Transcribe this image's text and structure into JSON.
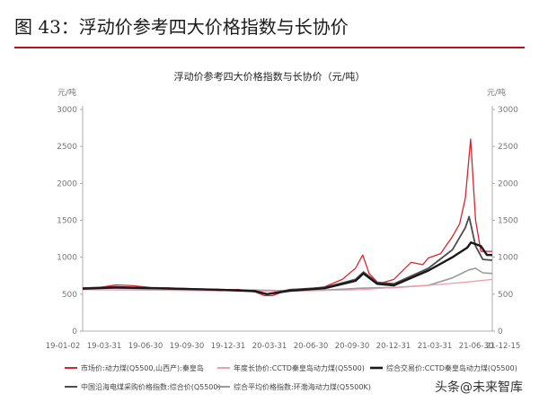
{
  "figure": {
    "title": "图 43：浮动价参考四大价格指数与长协价"
  },
  "watermark": "头条@未来智库",
  "chart_data": {
    "type": "line",
    "title": "浮动价参考四大价格指数与长协价（元/吨）",
    "left_axis": {
      "unit": "元/吨",
      "ticks": [
        0,
        500,
        1000,
        1500,
        2000,
        2500,
        3000
      ],
      "ylim": [
        0,
        3000
      ]
    },
    "right_axis": {
      "unit": "元/吨",
      "ticks": [
        0,
        500,
        1000,
        1500,
        2000,
        2500,
        3000
      ],
      "ylim": [
        0,
        3000
      ]
    },
    "x_ticks": [
      "19-01-02",
      "19-03-31",
      "19-06-30",
      "19-09-30",
      "19-12-31",
      "20-03-31",
      "20-06-30",
      "20-09-30",
      "20-12-31",
      "21-03-31",
      "21-06-30",
      "21-12-15"
    ],
    "legend_position": "bottom",
    "series": [
      {
        "name": "市场价:动力煤(Q5500,山西产):秦皇岛",
        "color": "#d7262f",
        "points": [
          [
            "2019-01-02",
            585
          ],
          [
            "2019-02-15",
            590
          ],
          [
            "2019-03-31",
            625
          ],
          [
            "2019-05-15",
            615
          ],
          [
            "2019-06-30",
            590
          ],
          [
            "2019-08-15",
            585
          ],
          [
            "2019-09-30",
            575
          ],
          [
            "2019-11-15",
            560
          ],
          [
            "2019-12-31",
            550
          ],
          [
            "2020-02-15",
            565
          ],
          [
            "2020-03-31",
            530
          ],
          [
            "2020-04-25",
            480
          ],
          [
            "2020-05-15",
            480
          ],
          [
            "2020-06-30",
            565
          ],
          [
            "2020-08-15",
            570
          ],
          [
            "2020-09-30",
            600
          ],
          [
            "2020-11-15",
            700
          ],
          [
            "2020-12-20",
            850
          ],
          [
            "2021-01-08",
            1030
          ],
          [
            "2021-01-25",
            780
          ],
          [
            "2021-02-20",
            640
          ],
          [
            "2021-03-31",
            700
          ],
          [
            "2021-05-15",
            930
          ],
          [
            "2021-06-15",
            900
          ],
          [
            "2021-06-30",
            990
          ],
          [
            "2021-08-01",
            1050
          ],
          [
            "2021-09-01",
            1280
          ],
          [
            "2021-09-20",
            1450
          ],
          [
            "2021-10-05",
            1800
          ],
          [
            "2021-10-19",
            2600
          ],
          [
            "2021-11-01",
            1500
          ],
          [
            "2021-11-15",
            1080
          ],
          [
            "2021-12-15",
            1080
          ]
        ]
      },
      {
        "name": "年度长协价:CCTD秦皇岛动力煤(Q5500)",
        "color": "#f19bb0",
        "points": [
          [
            "2019-01-02",
            560
          ],
          [
            "2019-06-30",
            555
          ],
          [
            "2019-12-31",
            545
          ],
          [
            "2020-06-30",
            540
          ],
          [
            "2020-12-31",
            560
          ],
          [
            "2021-03-31",
            590
          ],
          [
            "2021-06-30",
            620
          ],
          [
            "2021-09-30",
            660
          ],
          [
            "2021-12-15",
            700
          ]
        ]
      },
      {
        "name": "综合交易价:CCTD秦皇岛动力煤(Q5500)",
        "color": "#1a1a1a",
        "points": [
          [
            "2019-01-02",
            575
          ],
          [
            "2019-03-31",
            590
          ],
          [
            "2019-06-30",
            580
          ],
          [
            "2019-09-30",
            570
          ],
          [
            "2019-12-31",
            560
          ],
          [
            "2020-03-31",
            540
          ],
          [
            "2020-05-01",
            500
          ],
          [
            "2020-06-30",
            545
          ],
          [
            "2020-09-30",
            580
          ],
          [
            "2020-12-20",
            680
          ],
          [
            "2021-01-10",
            780
          ],
          [
            "2021-02-15",
            640
          ],
          [
            "2021-03-31",
            620
          ],
          [
            "2021-06-30",
            820
          ],
          [
            "2021-09-01",
            1000
          ],
          [
            "2021-10-10",
            1130
          ],
          [
            "2021-10-20",
            1200
          ],
          [
            "2021-11-15",
            1150
          ],
          [
            "2021-12-01",
            1030
          ],
          [
            "2021-12-15",
            1030
          ]
        ]
      },
      {
        "name": "中国沿海电煤采购价格指数:综合价(Q5500)",
        "color": "#4d4d4d",
        "points": [
          [
            "2019-01-02",
            580
          ],
          [
            "2019-03-31",
            600
          ],
          [
            "2019-06-30",
            585
          ],
          [
            "2019-09-30",
            575
          ],
          [
            "2019-12-31",
            560
          ],
          [
            "2020-03-31",
            545
          ],
          [
            "2020-05-01",
            500
          ],
          [
            "2020-06-30",
            560
          ],
          [
            "2020-09-30",
            590
          ],
          [
            "2020-12-20",
            700
          ],
          [
            "2021-01-10",
            800
          ],
          [
            "2021-02-15",
            660
          ],
          [
            "2021-03-31",
            640
          ],
          [
            "2021-06-30",
            850
          ],
          [
            "2021-09-01",
            1100
          ],
          [
            "2021-10-05",
            1400
          ],
          [
            "2021-10-15",
            1550
          ],
          [
            "2021-11-01",
            1150
          ],
          [
            "2021-11-20",
            970
          ],
          [
            "2021-12-15",
            960
          ]
        ]
      },
      {
        "name": "综合平均价格指数:环渤海动力煤(Q5500K)",
        "color": "#9a9a9a",
        "points": [
          [
            "2019-01-02",
            575
          ],
          [
            "2019-03-31",
            580
          ],
          [
            "2019-06-30",
            575
          ],
          [
            "2019-09-30",
            570
          ],
          [
            "2019-12-31",
            560
          ],
          [
            "2020-03-31",
            555
          ],
          [
            "2020-06-30",
            545
          ],
          [
            "2020-09-30",
            555
          ],
          [
            "2020-12-31",
            580
          ],
          [
            "2021-03-31",
            590
          ],
          [
            "2021-06-30",
            620
          ],
          [
            "2021-09-01",
            720
          ],
          [
            "2021-10-15",
            830
          ],
          [
            "2021-11-01",
            850
          ],
          [
            "2021-11-20",
            790
          ],
          [
            "2021-12-15",
            780
          ]
        ]
      }
    ]
  }
}
